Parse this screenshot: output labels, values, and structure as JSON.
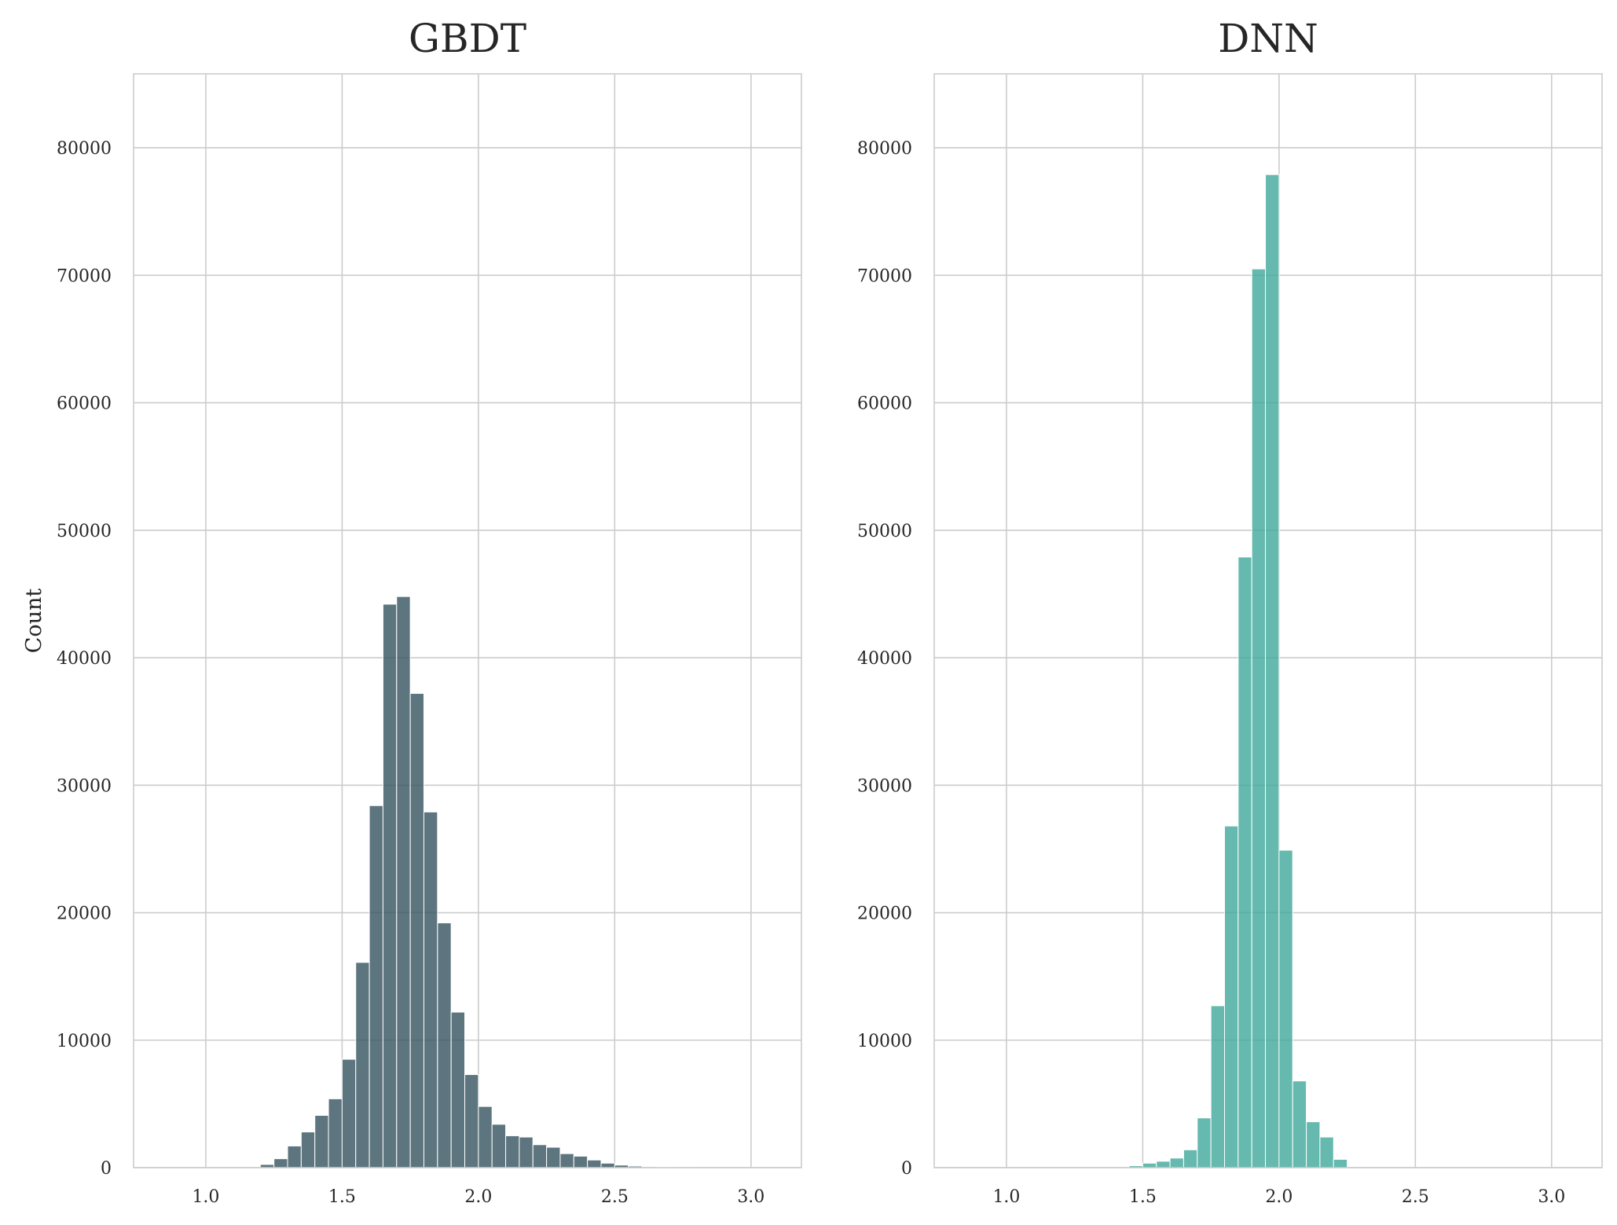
{
  "chart_data": [
    {
      "type": "bar",
      "title": "GBDT",
      "xlabel": "",
      "ylabel": "Count",
      "xlim": [
        0.735,
        3.185
      ],
      "ylim": [
        0,
        85800
      ],
      "xticks": [
        "1.0",
        "1.5",
        "2.0",
        "2.5",
        "3.0"
      ],
      "yticks": [
        "0",
        "10000",
        "20000",
        "30000",
        "40000",
        "50000",
        "60000",
        "70000",
        "80000"
      ],
      "grid": true,
      "color": "#35525e",
      "bin_width": 0.05,
      "x": [
        1.2,
        1.25,
        1.3,
        1.35,
        1.4,
        1.45,
        1.5,
        1.55,
        1.6,
        1.65,
        1.7,
        1.75,
        1.8,
        1.85,
        1.9,
        1.95,
        2.0,
        2.05,
        2.1,
        2.15,
        2.2,
        2.25,
        2.3,
        2.35,
        2.4,
        2.45,
        2.5,
        2.55,
        2.6,
        2.65,
        2.7,
        2.75
      ],
      "values": [
        250,
        700,
        1700,
        2800,
        4100,
        5400,
        8500,
        16100,
        28400,
        44200,
        44800,
        37200,
        27900,
        19200,
        12200,
        7300,
        4800,
        3400,
        2500,
        2400,
        1800,
        1600,
        1100,
        900,
        600,
        350,
        200,
        120,
        70,
        40,
        25,
        10
      ]
    },
    {
      "type": "bar",
      "title": "DNN",
      "xlabel": "",
      "ylabel": "",
      "xlim": [
        0.735,
        3.185
      ],
      "ylim": [
        0,
        85800
      ],
      "xticks": [
        "1.0",
        "1.5",
        "2.0",
        "2.5",
        "3.0"
      ],
      "yticks": [
        "0",
        "10000",
        "20000",
        "30000",
        "40000",
        "50000",
        "60000",
        "70000",
        "80000"
      ],
      "grid": true,
      "color": "#3fa89a",
      "bin_width": 0.05,
      "x": [
        1.45,
        1.5,
        1.55,
        1.6,
        1.65,
        1.7,
        1.75,
        1.8,
        1.85,
        1.9,
        1.95,
        2.0,
        2.05,
        2.1,
        2.15,
        2.2
      ],
      "values": [
        150,
        350,
        500,
        750,
        1400,
        3900,
        12700,
        26800,
        47900,
        70500,
        77900,
        24900,
        6800,
        3600,
        2400,
        650
      ]
    }
  ]
}
